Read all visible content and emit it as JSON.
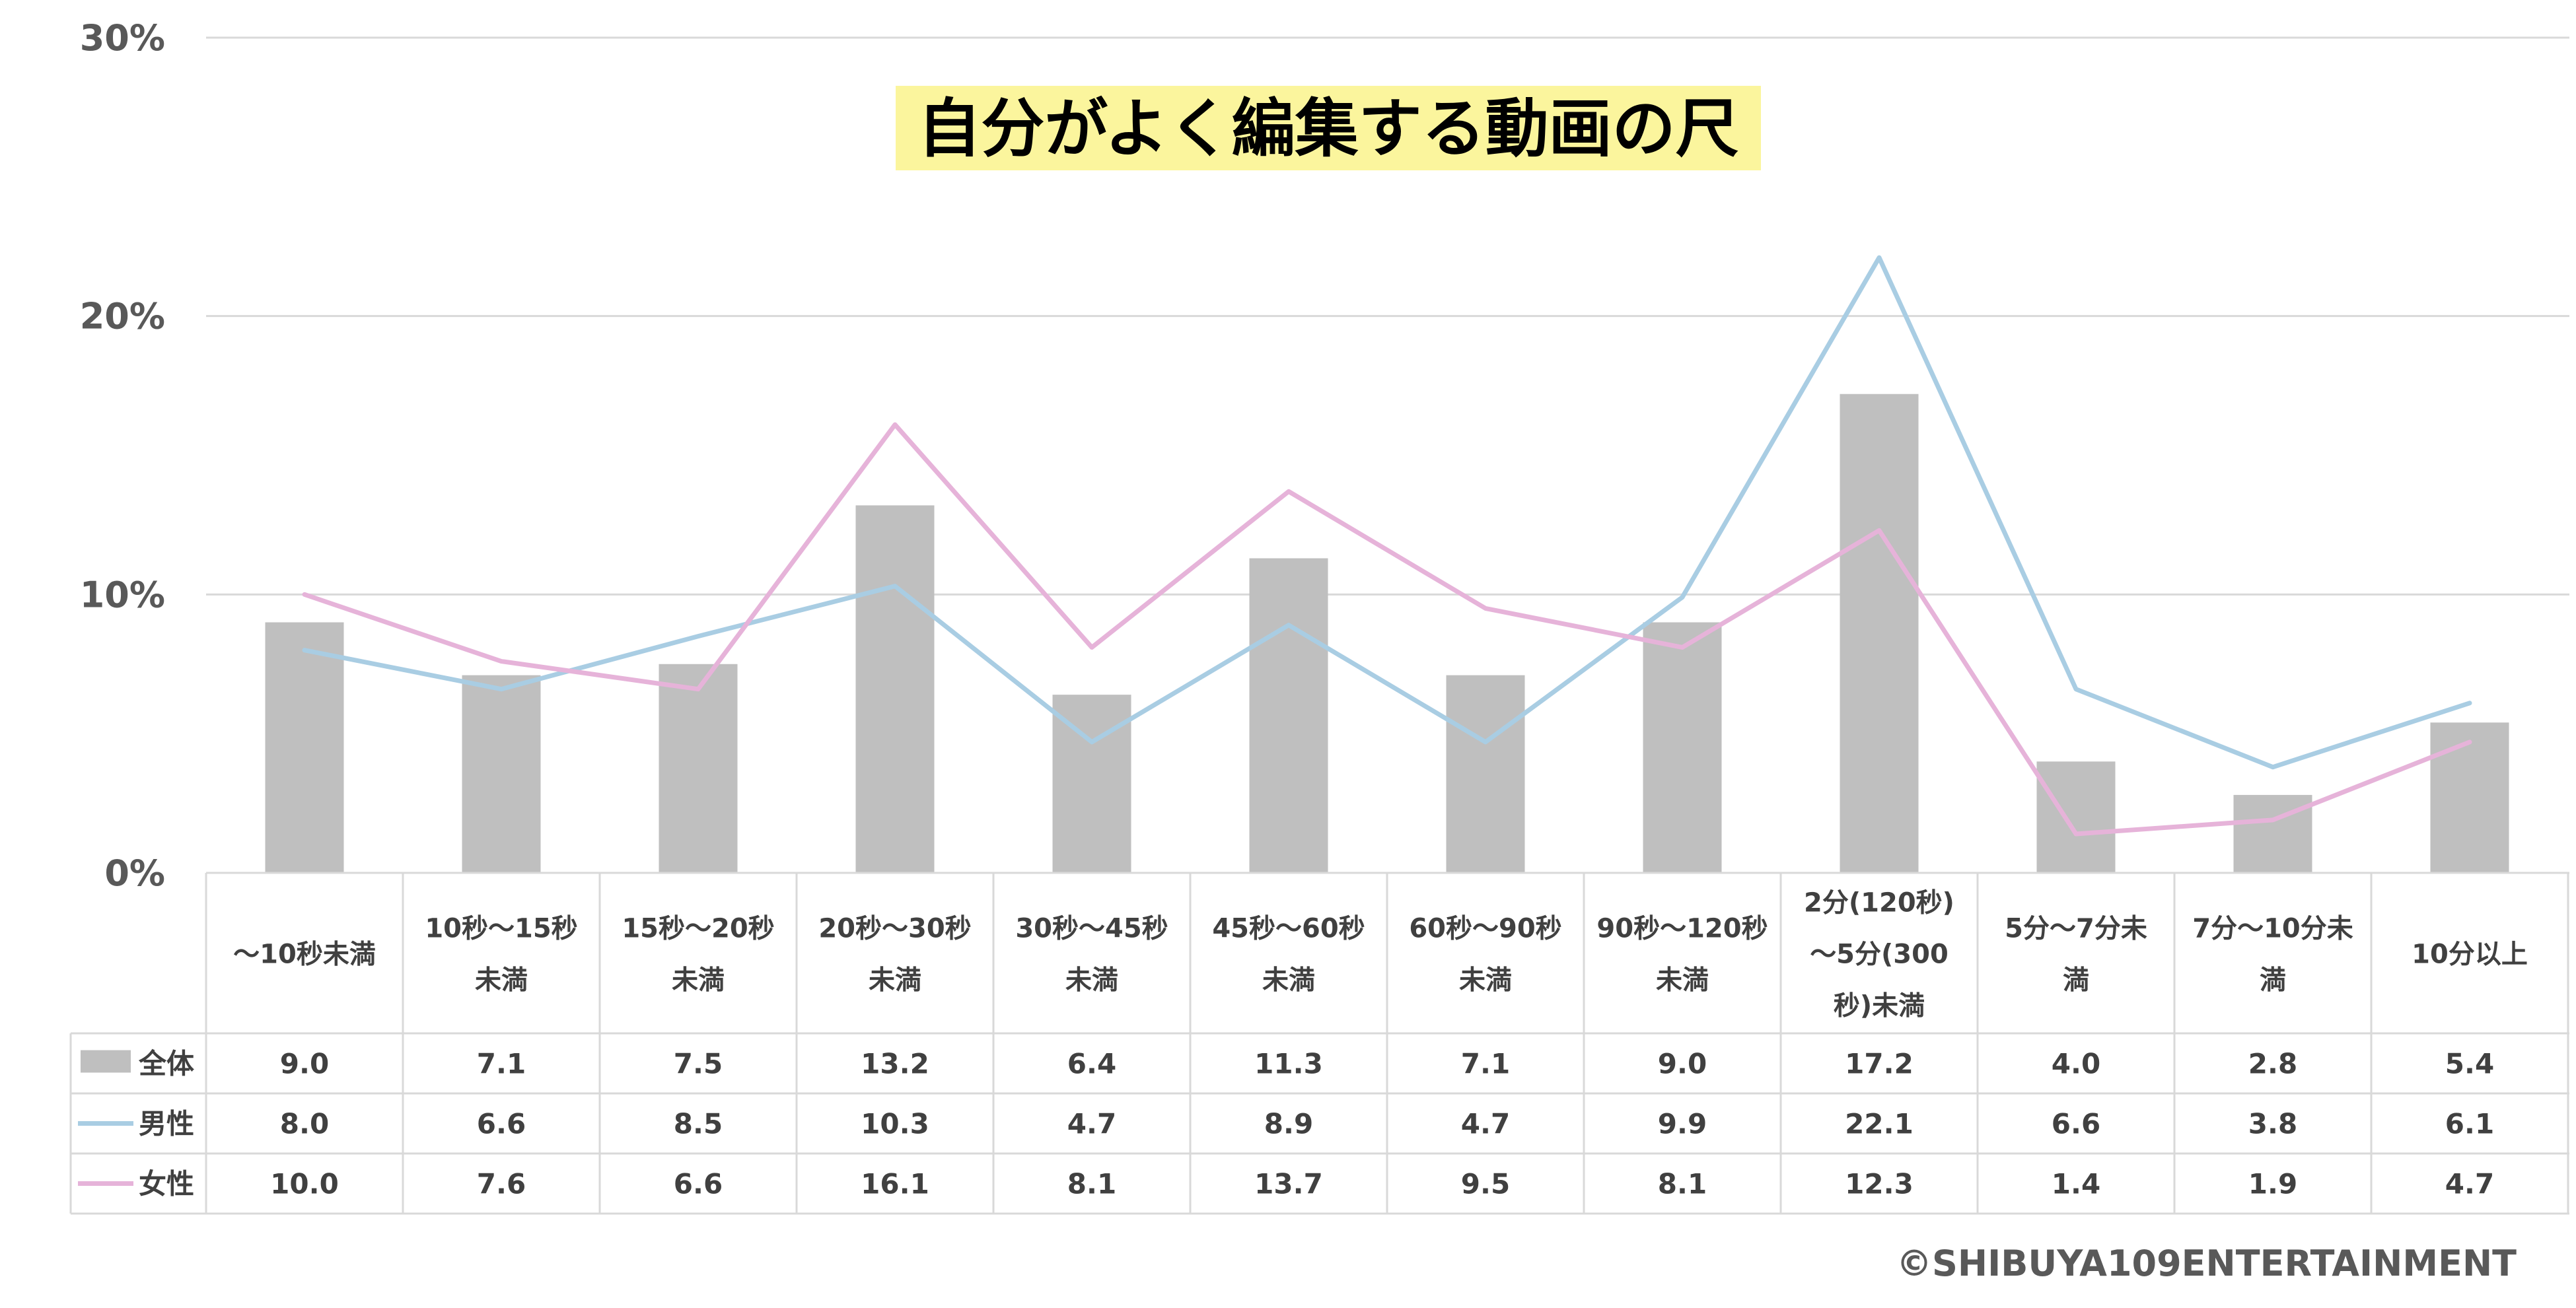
{
  "chart_data": {
    "type": "bar",
    "title": "自分がよく編集する動画の尺",
    "categories": [
      [
        "〜10秒未満"
      ],
      [
        "10秒〜15秒",
        "未満"
      ],
      [
        "15秒〜20秒",
        "未満"
      ],
      [
        "20秒〜30秒",
        "未満"
      ],
      [
        "30秒〜45秒",
        "未満"
      ],
      [
        "45秒〜60秒",
        "未満"
      ],
      [
        "60秒〜90秒",
        "未満"
      ],
      [
        "90秒〜120秒",
        "未満"
      ],
      [
        "2分(120秒)",
        "〜5分(300",
        "秒)未満"
      ],
      [
        "5分〜7分未",
        "満"
      ],
      [
        "7分〜10分未",
        "満"
      ],
      [
        "10分以上"
      ]
    ],
    "series": [
      {
        "name": "全体",
        "kind": "bar",
        "color": "#bfbfbf",
        "values": [
          9.0,
          7.1,
          7.5,
          13.2,
          6.4,
          11.3,
          7.1,
          9.0,
          17.2,
          4.0,
          2.8,
          5.4
        ],
        "labels": [
          "9.0",
          "7.1",
          "7.5",
          "13.2",
          "6.4",
          "11.3",
          "7.1",
          "9.0",
          "17.2",
          "4.0",
          "2.8",
          "5.4"
        ]
      },
      {
        "name": "男性",
        "kind": "line",
        "color": "#a9cde3",
        "values": [
          8.0,
          6.6,
          8.5,
          10.3,
          4.7,
          8.9,
          4.7,
          9.9,
          22.1,
          6.6,
          3.8,
          6.1
        ],
        "labels": [
          "8.0",
          "6.6",
          "8.5",
          "10.3",
          "4.7",
          "8.9",
          "4.7",
          "9.9",
          "22.1",
          "6.6",
          "3.8",
          "6.1"
        ]
      },
      {
        "name": "女性",
        "kind": "line",
        "color": "#e6b3d9",
        "values": [
          10.0,
          7.6,
          6.6,
          16.1,
          8.1,
          13.7,
          9.5,
          8.1,
          12.3,
          1.4,
          1.9,
          4.7
        ],
        "labels": [
          "10.0",
          "7.6",
          "6.6",
          "16.1",
          "8.1",
          "13.7",
          "9.5",
          "8.1",
          "12.3",
          "1.4",
          "1.9",
          "4.7"
        ]
      }
    ],
    "y_ticks": [
      0,
      10,
      20,
      30
    ],
    "y_tick_labels": [
      "0%",
      "10%",
      "20%",
      "30%"
    ],
    "ylim": [
      0,
      30
    ],
    "grid": true,
    "legend": "data-table-left",
    "xlabel": "",
    "ylabel": ""
  },
  "copyright": "©SHIBUYA109ENTERTAINMENT"
}
